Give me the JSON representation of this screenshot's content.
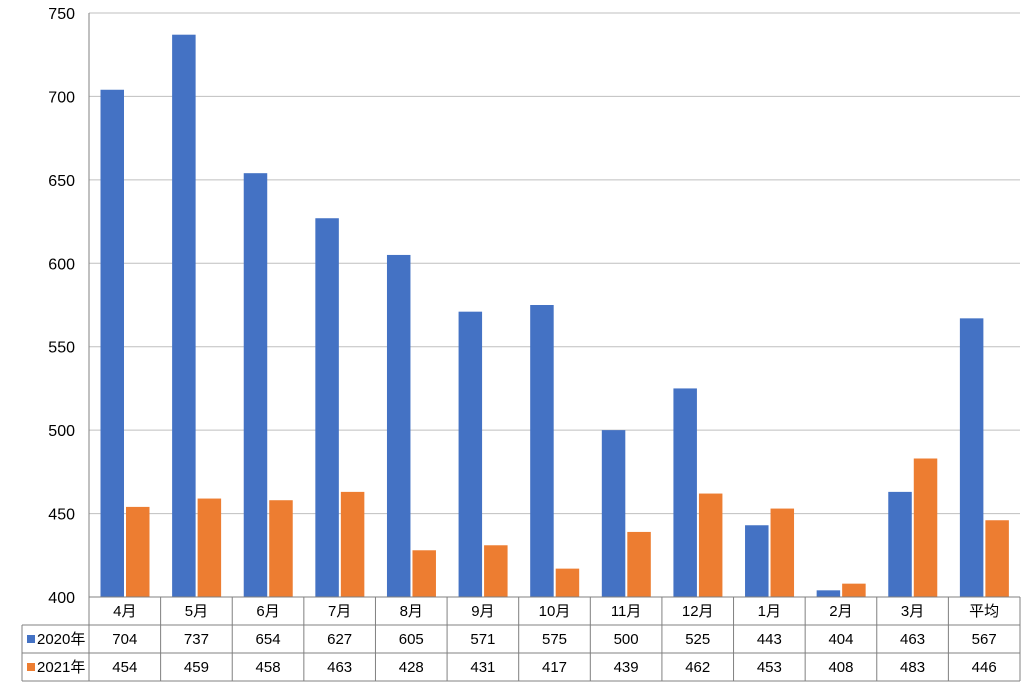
{
  "chart_data": {
    "type": "bar",
    "categories": [
      "4月",
      "5月",
      "6月",
      "7月",
      "8月",
      "9月",
      "10月",
      "11月",
      "12月",
      "1月",
      "2月",
      "3月",
      "平均"
    ],
    "series": [
      {
        "name": "2020年",
        "color": "#4472C4",
        "values": [
          704,
          737,
          654,
          627,
          605,
          571,
          575,
          500,
          525,
          443,
          404,
          463,
          567
        ]
      },
      {
        "name": "2021年",
        "color": "#ED7D31",
        "values": [
          454,
          459,
          458,
          463,
          428,
          431,
          417,
          439,
          462,
          453,
          408,
          483,
          446
        ]
      }
    ],
    "ylim": [
      400,
      750
    ],
    "yticks": [
      400,
      450,
      500,
      550,
      600,
      650,
      700,
      750
    ],
    "grid": true,
    "data_table": true,
    "title": "",
    "xlabel": "",
    "ylabel": ""
  }
}
